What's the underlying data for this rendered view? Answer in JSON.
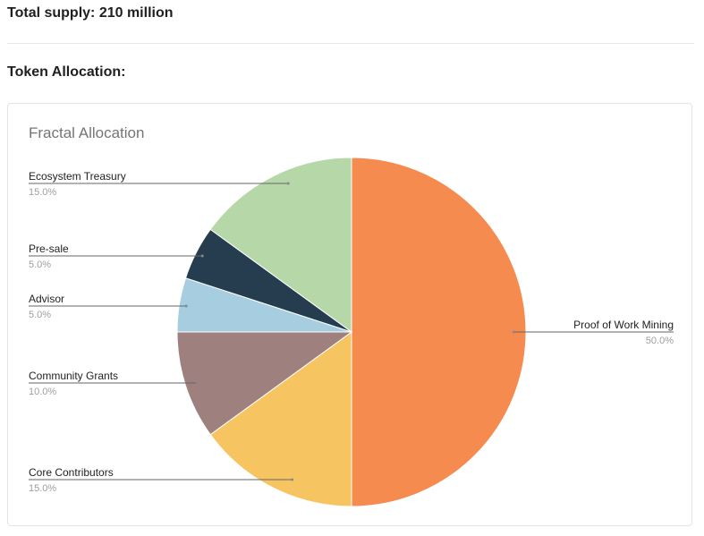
{
  "header": {
    "total_supply": "Total supply: 210 million",
    "allocation_heading": "Token Allocation:"
  },
  "chart_data": {
    "type": "pie",
    "title": "Fractal Allocation",
    "legend": "labels with leader lines",
    "start_angle_deg": 0,
    "direction": "clockwise",
    "slices": [
      {
        "label": "Proof of Work Mining",
        "value": 50.0,
        "pct_label": "50.0%",
        "color": "#F58B4F"
      },
      {
        "label": "Core Contributors",
        "value": 15.0,
        "pct_label": "15.0%",
        "color": "#F7C462"
      },
      {
        "label": "Community Grants",
        "value": 10.0,
        "pct_label": "10.0%",
        "color": "#9E807E"
      },
      {
        "label": "Advisor",
        "value": 5.0,
        "pct_label": "5.0%",
        "color": "#A6CDE0"
      },
      {
        "label": "Pre-sale",
        "value": 5.0,
        "pct_label": "5.0%",
        "color": "#253D4E"
      },
      {
        "label": "Ecosystem Treasury",
        "value": 15.0,
        "pct_label": "15.0%",
        "color": "#B6D7A8"
      }
    ]
  }
}
